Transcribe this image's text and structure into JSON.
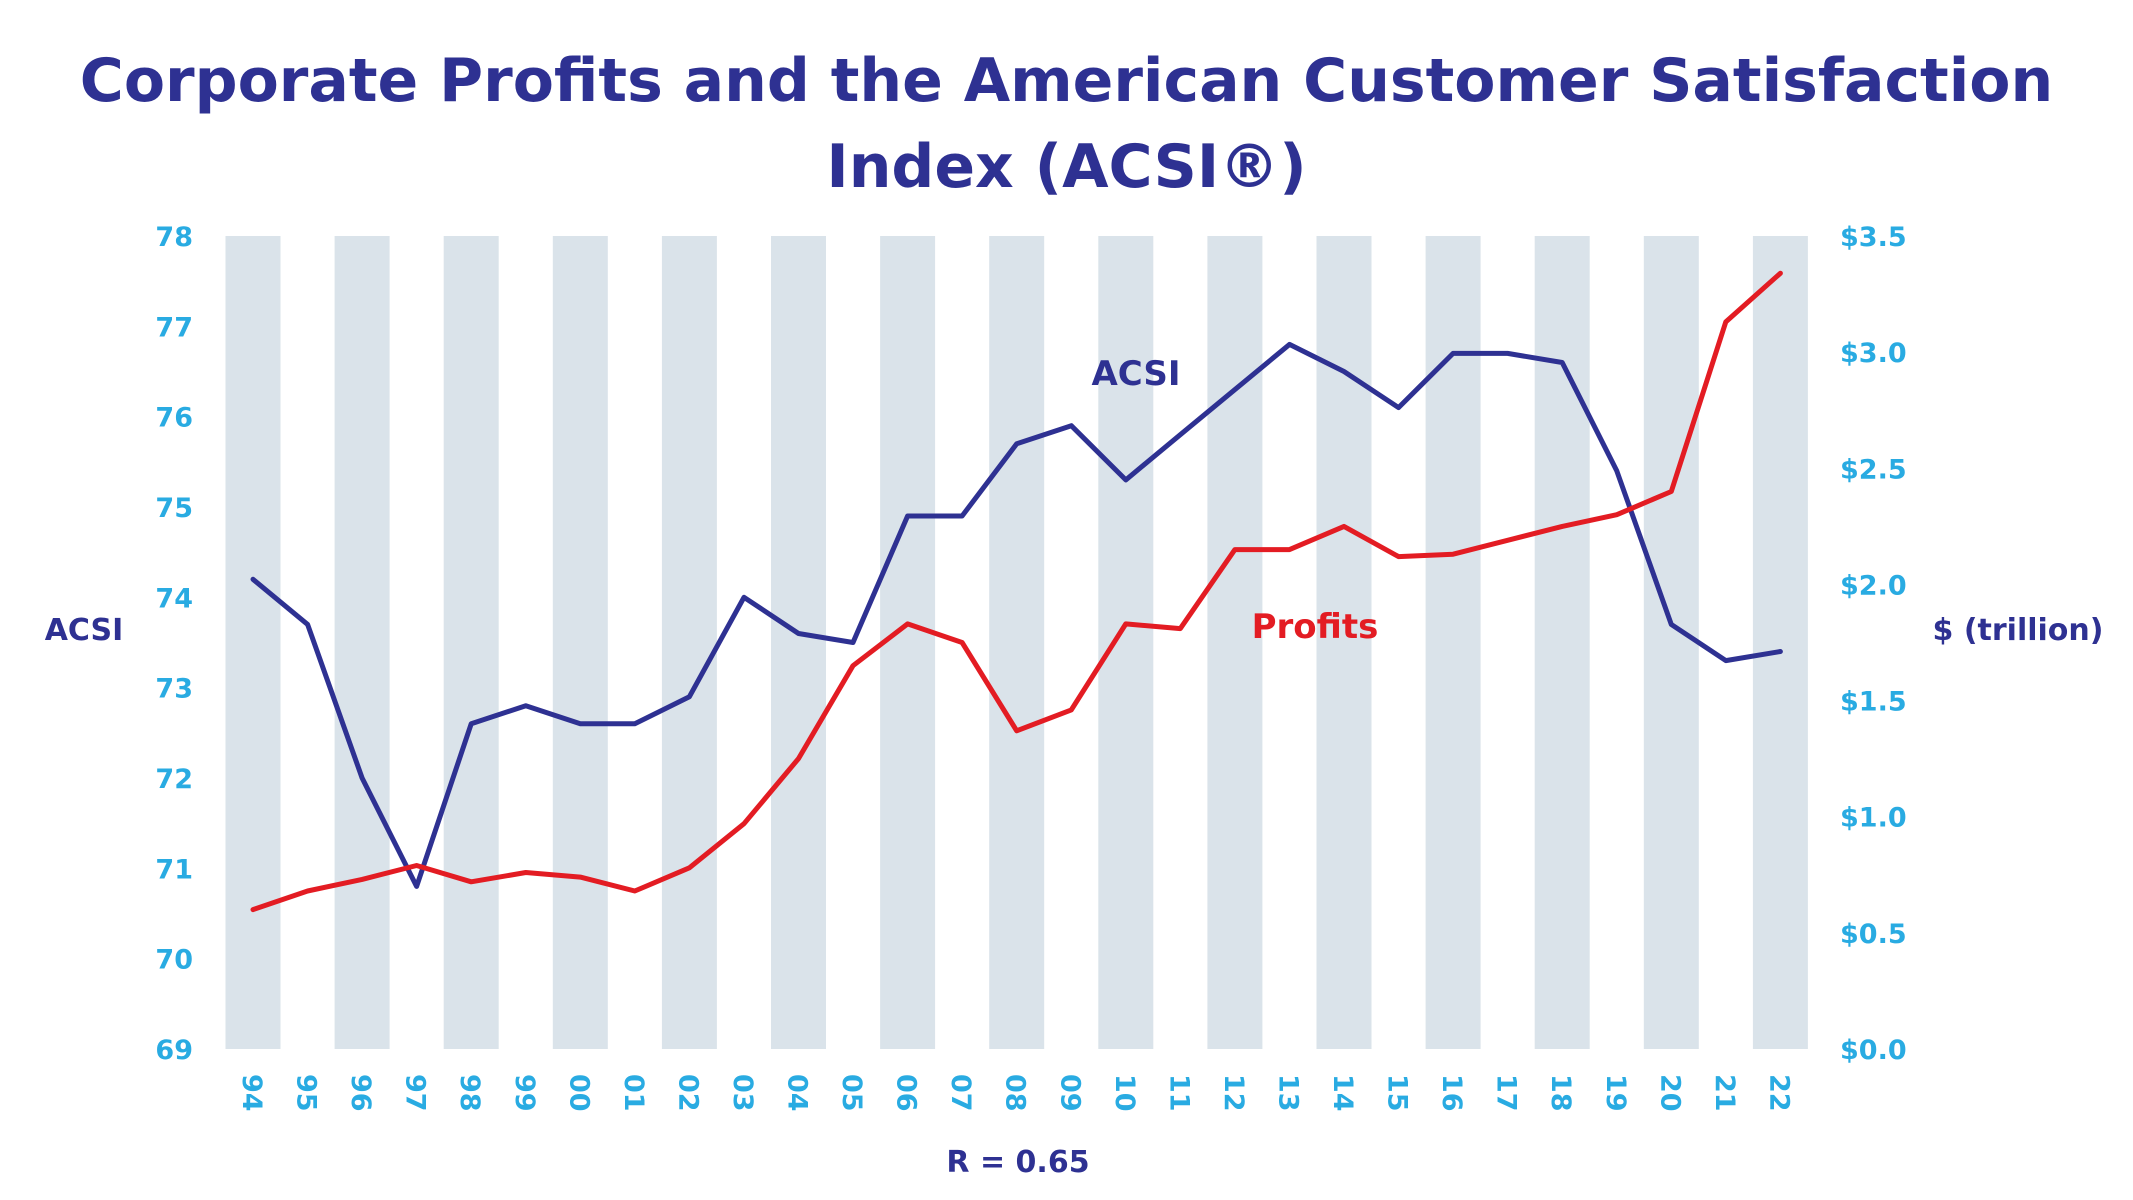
{
  "chart_data": {
    "type": "line",
    "title": "Corporate Profits and the American Customer Satisfaction Index (ACSI®)",
    "categories": [
      "94",
      "95",
      "96",
      "97",
      "98",
      "99",
      "00",
      "01",
      "02",
      "03",
      "04",
      "05",
      "06",
      "07",
      "08",
      "09",
      "10",
      "11",
      "12",
      "13",
      "14",
      "15",
      "16",
      "17",
      "18",
      "19",
      "20",
      "21",
      "22"
    ],
    "y_left": {
      "label": "ACSI",
      "range": [
        69,
        78
      ],
      "ticks": [
        "69",
        "70",
        "71",
        "72",
        "73",
        "74",
        "75",
        "76",
        "77",
        "78"
      ]
    },
    "y_right": {
      "label": "$ (trillion)",
      "range": [
        0,
        3.5
      ],
      "ticks": [
        "$0.0",
        "$0.5",
        "$1.0",
        "$1.5",
        "$2.0",
        "$2.5",
        "$3.0",
        "$3.5"
      ]
    },
    "series": [
      {
        "name": "ACSI",
        "axis": "left",
        "color": "#2e3192",
        "values": [
          74.2,
          73.7,
          72.0,
          70.8,
          72.6,
          72.8,
          72.6,
          72.6,
          72.9,
          74.0,
          73.6,
          73.5,
          74.9,
          74.9,
          75.7,
          75.9,
          75.3,
          75.8,
          76.3,
          76.8,
          76.5,
          76.1,
          76.7,
          76.7,
          76.6,
          75.4,
          73.7,
          73.3,
          73.4
        ]
      },
      {
        "name": "Profits",
        "axis": "right",
        "color": "#e31c23",
        "values": [
          0.6,
          0.68,
          0.73,
          0.79,
          0.72,
          0.76,
          0.74,
          0.68,
          0.78,
          0.97,
          1.25,
          1.65,
          1.83,
          1.75,
          1.37,
          1.46,
          1.83,
          1.81,
          2.15,
          2.15,
          2.25,
          2.12,
          2.13,
          2.19,
          2.25,
          2.3,
          2.4,
          3.13,
          3.34
        ]
      }
    ],
    "stripe_color": "#dae3ea",
    "grid": false,
    "annotation": "R = 0.65"
  }
}
